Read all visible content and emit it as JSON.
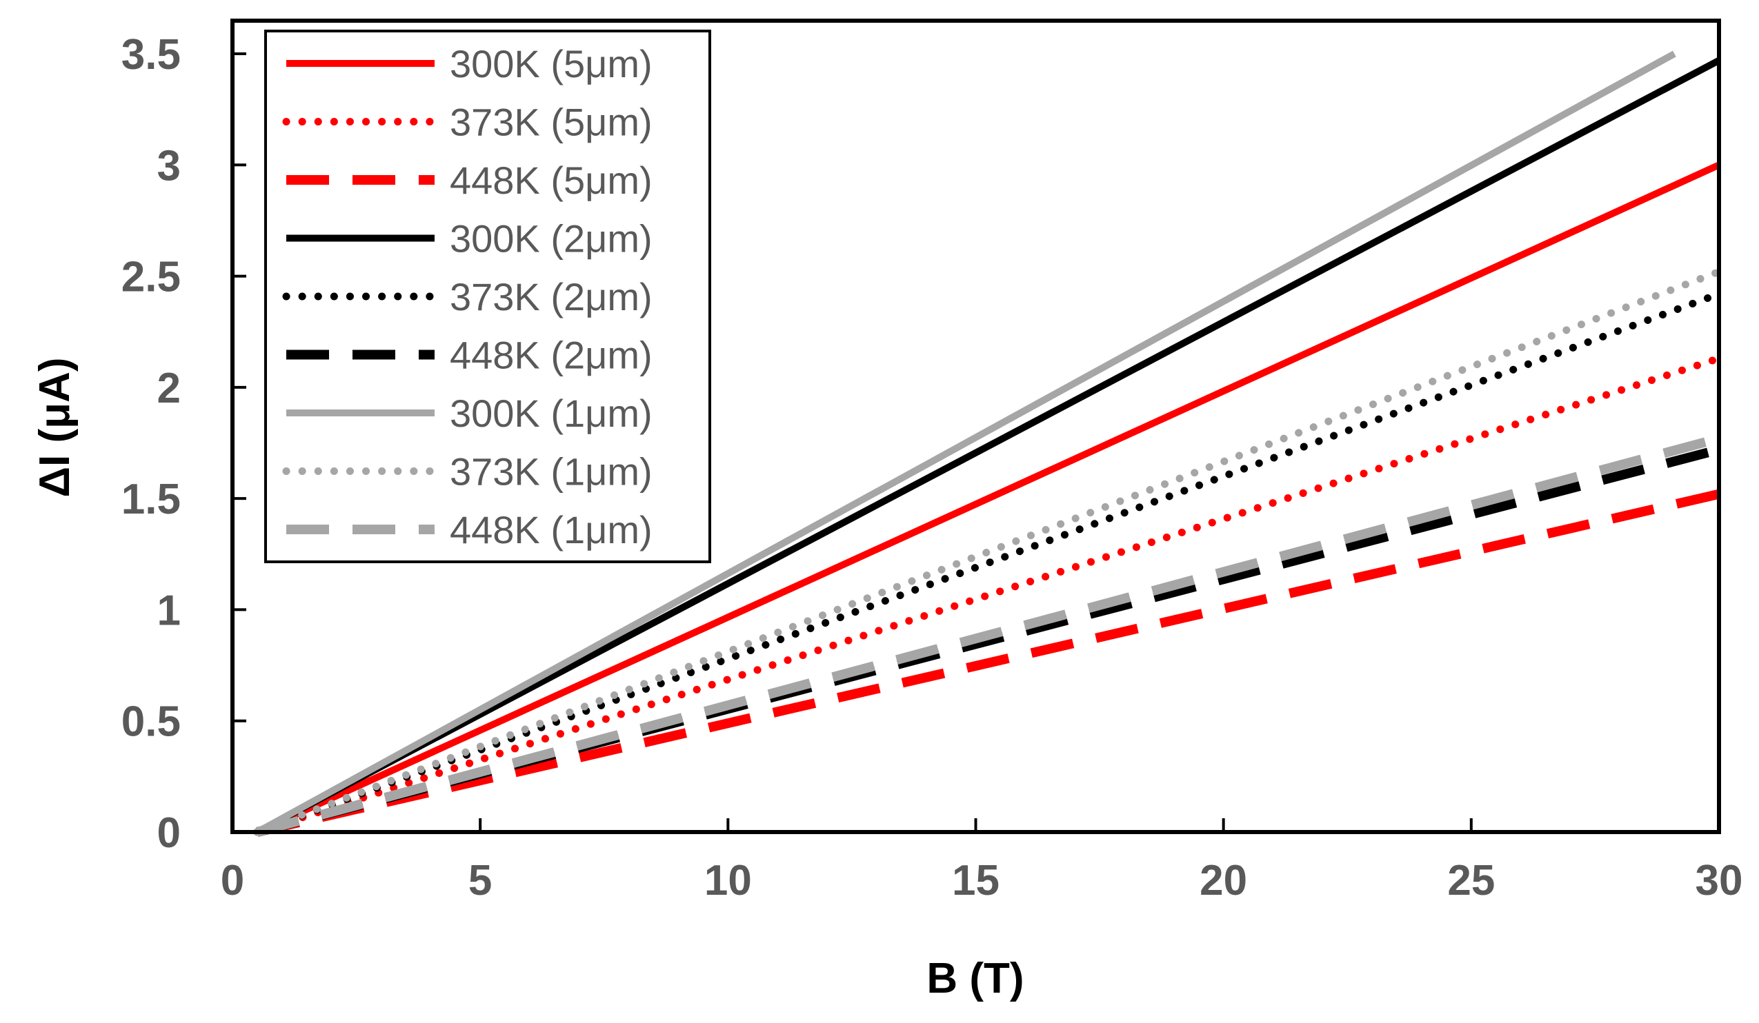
{
  "chart_data": {
    "type": "line",
    "title": "",
    "xlabel": "B (T)",
    "ylabel": "ΔI (μA)",
    "xlim": [
      0,
      30
    ],
    "ylim": [
      0,
      3.5
    ],
    "x_ticks": [
      "0",
      "5",
      "10",
      "15",
      "20",
      "25",
      "30"
    ],
    "y_ticks": [
      "0",
      "0.5",
      "1",
      "1.5",
      "2",
      "2.5",
      "3",
      "3.5"
    ],
    "grid": false,
    "legend_position": "top-left",
    "series": [
      {
        "name": "300K (5μm)",
        "color": "#ff0000",
        "style": "solid",
        "x": [
          0.5,
          30
        ],
        "y": [
          0,
          3.0
        ]
      },
      {
        "name": "373K (5μm)",
        "color": "#ff0000",
        "style": "dotted",
        "x": [
          0.5,
          30
        ],
        "y": [
          0,
          2.13
        ]
      },
      {
        "name": "448K (5μm)",
        "color": "#ff0000",
        "style": "dashed",
        "x": [
          0.5,
          30
        ],
        "y": [
          0,
          1.52
        ]
      },
      {
        "name": "300K (2μm)",
        "color": "#000000",
        "style": "solid",
        "x": [
          0.5,
          30
        ],
        "y": [
          0,
          3.47
        ]
      },
      {
        "name": "373K (2μm)",
        "color": "#000000",
        "style": "dotted",
        "x": [
          0.5,
          30
        ],
        "y": [
          0,
          2.42
        ]
      },
      {
        "name": "448K (2μm)",
        "color": "#000000",
        "style": "dashed",
        "x": [
          0.5,
          30
        ],
        "y": [
          0,
          1.72
        ]
      },
      {
        "name": "300K (1μm)",
        "color": "#a6a6a6",
        "style": "solid",
        "x": [
          0.5,
          29.1
        ],
        "y": [
          0,
          3.5
        ]
      },
      {
        "name": "373K (1μm)",
        "color": "#a6a6a6",
        "style": "dotted",
        "x": [
          0.5,
          30
        ],
        "y": [
          0,
          2.52
        ]
      },
      {
        "name": "448K (1μm)",
        "color": "#a6a6a6",
        "style": "dashed",
        "x": [
          0.5,
          30
        ],
        "y": [
          0,
          1.77
        ]
      }
    ]
  }
}
